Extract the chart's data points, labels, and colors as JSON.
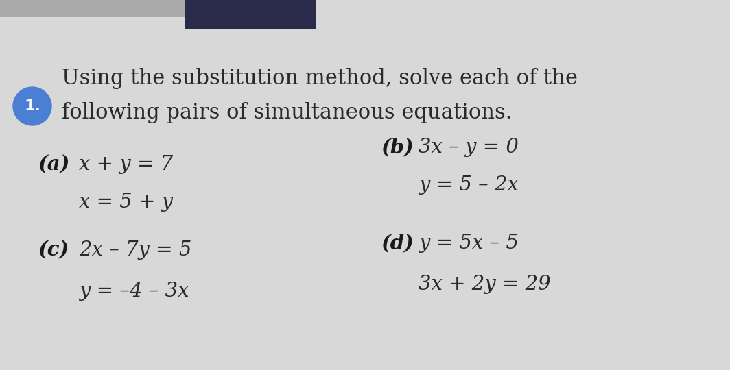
{
  "bg_color": "#d8d8d8",
  "top_bar_color": "#2a2a4a",
  "top_bar2_color": "#555577",
  "circle_color": "#4a7fd4",
  "circle_number": "1.",
  "title_line1": "Using the substitution method, solve each of the",
  "title_line2": "following pairs of simultaneous equations.",
  "part_a_label": "(a)",
  "part_a_eq1": "x + y = 7",
  "part_a_eq2": "x = 5 + y",
  "part_b_label": "(b)",
  "part_b_eq1": "3x – y = 0",
  "part_b_eq2": "y = 5 – 2x",
  "part_c_label": "(c)",
  "part_c_eq1": "2x – 7y = 5",
  "part_c_eq2": "y = –4 – 3x",
  "part_d_label": "(d)",
  "part_d_eq1": "y = 5x – 5",
  "part_d_eq2": "3x + 2y = 29",
  "text_color": "#2a2a2a",
  "label_color": "#1a1a1a",
  "title_fontsize": 22,
  "label_fontsize": 21,
  "eq_fontsize": 21
}
